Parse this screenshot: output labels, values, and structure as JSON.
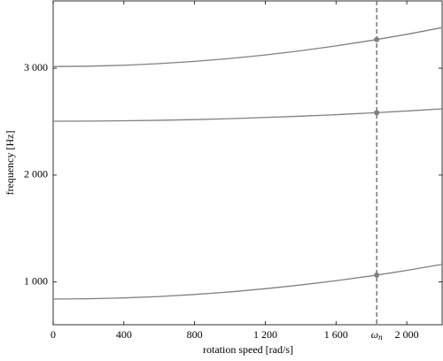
{
  "chart_data": {
    "type": "line",
    "x_label": "rotation speed [rad/s]",
    "y_label": "frequency [Hz]",
    "x": [
      0,
      200,
      400,
      600,
      800,
      1000,
      1200,
      1400,
      1600,
      1800,
      2000,
      2200
    ],
    "series": [
      {
        "color": "#808080",
        "values": [
          840,
          843,
          851,
          864,
          883,
          907,
          937,
          972,
          1012,
          1057,
          1108,
          1165
        ]
      },
      {
        "color": "#808080",
        "values": [
          2504,
          2505,
          2508,
          2513,
          2519,
          2528,
          2539,
          2551,
          2565,
          2582,
          2600,
          2620
        ]
      },
      {
        "color": "#808080",
        "values": [
          3016,
          3019,
          3028,
          3043,
          3064,
          3091,
          3124,
          3163,
          3209,
          3260,
          3317,
          3380
        ]
      }
    ],
    "markers": {
      "x": 1830,
      "values": [
        1065,
        2584,
        3268
      ],
      "color": "#808080"
    },
    "annotation": {
      "x": 1830,
      "label": "ω",
      "subscript": "n",
      "color": "#555555"
    },
    "xlim": [
      0,
      2200
    ],
    "ylim": [
      600,
      3630
    ],
    "xticks": [
      0,
      400,
      800,
      {
        "value": 1200,
        "label": "1 200"
      },
      {
        "value": 1600,
        "label": "1 600"
      },
      {
        "value": 2000,
        "label": "2 000"
      }
    ],
    "yticks": [
      {
        "value": 1000,
        "label": "1 000"
      },
      {
        "value": 2000,
        "label": "2 000"
      },
      {
        "value": 3000,
        "label": "3 000"
      }
    ],
    "grid": false
  }
}
